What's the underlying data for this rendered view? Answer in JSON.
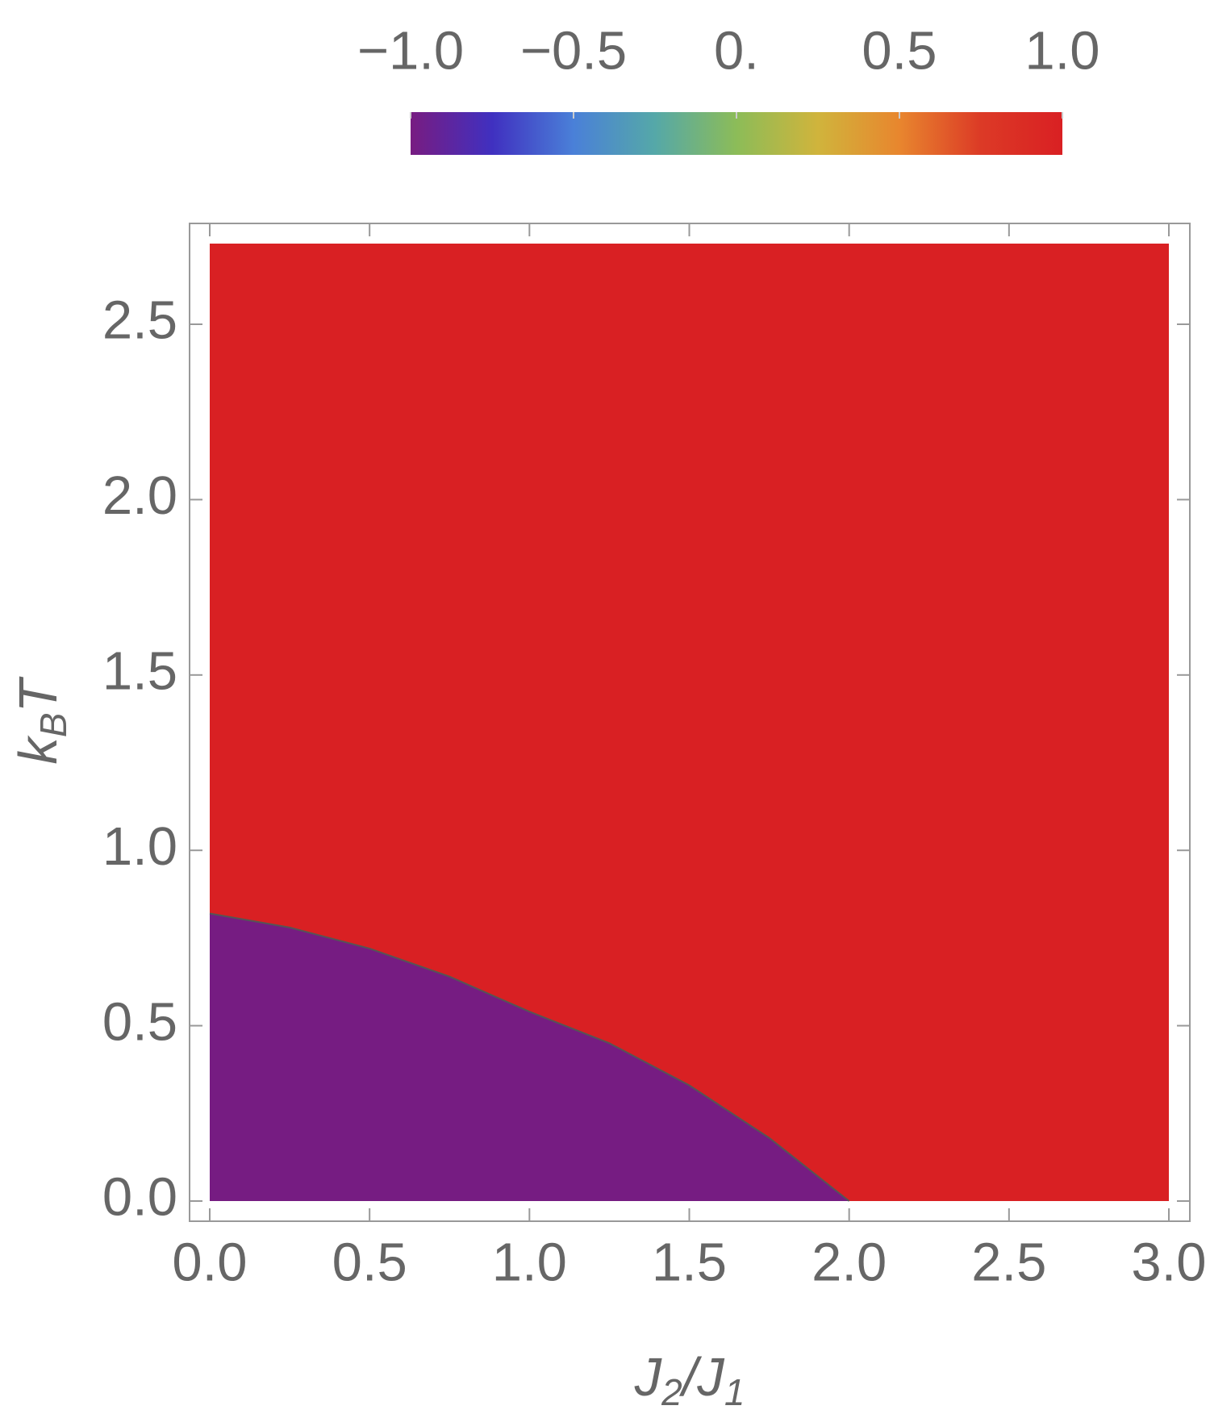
{
  "chart_data": {
    "type": "region",
    "xlabel": [
      "J",
      "2",
      "/J",
      "1"
    ],
    "ylabel": [
      "k",
      "B",
      "T"
    ],
    "xlim": [
      0,
      3
    ],
    "ylim": [
      0,
      2.73
    ],
    "xticks": [
      {
        "value": 0,
        "label": "0.0"
      },
      0.5,
      {
        "value": 1,
        "label": "1.0"
      },
      1.5,
      {
        "value": 2,
        "label": "2.0"
      },
      2.5,
      {
        "value": 3,
        "label": "3.0"
      }
    ],
    "yticks": [
      {
        "value": 0,
        "label": "0.0"
      },
      0.5,
      {
        "value": 1,
        "label": "1.0"
      },
      1.5,
      {
        "value": 2,
        "label": "2.0"
      },
      2.5
    ],
    "regions": [
      {
        "value": -1,
        "color": "#761c82"
      },
      {
        "value": 1,
        "color": "#d92023"
      }
    ],
    "boundary": {
      "color": "#555555",
      "x": [
        0,
        0.25,
        0.5,
        0.75,
        1.0,
        1.25,
        1.5,
        1.75,
        2.0
      ],
      "y": [
        0.82,
        0.78,
        0.72,
        0.64,
        0.54,
        0.45,
        0.33,
        0.18,
        0
      ]
    },
    "colorbar": {
      "lim": [
        -1,
        1
      ],
      "ticks": [
        {
          "value": -1,
          "label": "−1.0"
        },
        {
          "value": -0.5,
          "label": "−0.5"
        },
        {
          "value": 0,
          "label": "0."
        },
        0.5,
        {
          "value": 1,
          "label": "1.0"
        }
      ],
      "colors": [
        "#781c81",
        "#4030c0",
        "#4a80d8",
        "#55a8a8",
        "#8cbc58",
        "#d0b43c",
        "#e8862e",
        "#dc3a26",
        "#d92023"
      ]
    }
  }
}
